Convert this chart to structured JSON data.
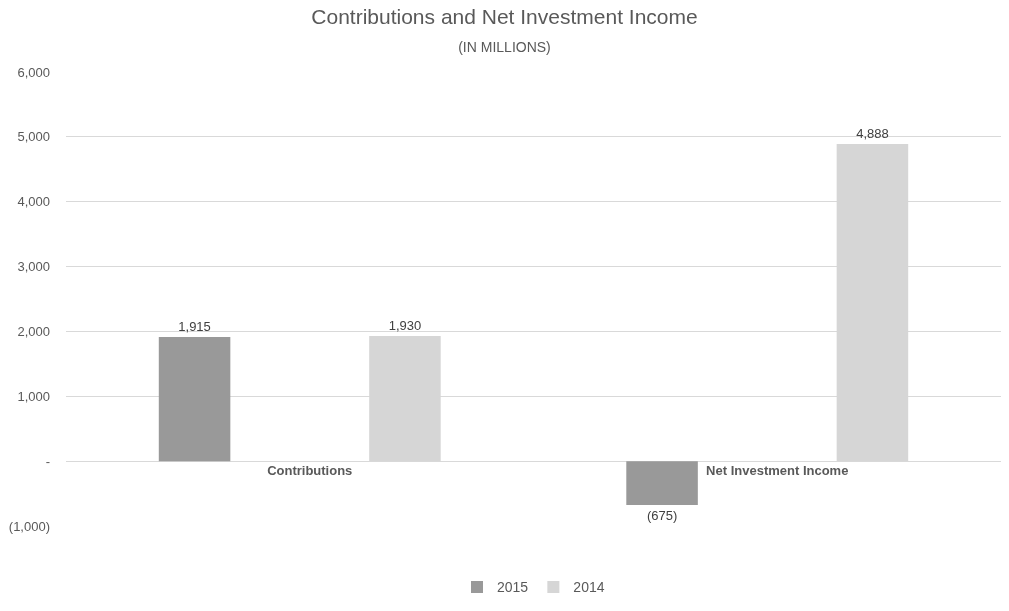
{
  "chart_data": {
    "type": "bar",
    "title": "Contributions and Net Investment Income",
    "subtitle": "(IN MILLIONS)",
    "categories": [
      "Contributions",
      "Net Investment Income"
    ],
    "series": [
      {
        "name": "2015",
        "color": "#999999",
        "values": [
          1915,
          -675
        ],
        "value_labels": [
          "1,915",
          "(675)"
        ]
      },
      {
        "name": "2014",
        "color": "#d6d6d6",
        "values": [
          1930,
          4888
        ],
        "value_labels": [
          "1,930",
          "4,888"
        ]
      }
    ],
    "ylim": [
      -1000,
      6000
    ],
    "yticks": [
      {
        "value": -1000,
        "label": "(1,000)"
      },
      {
        "value": 0,
        "label": "-"
      },
      {
        "value": 1000,
        "label": "1,000"
      },
      {
        "value": 2000,
        "label": "2,000"
      },
      {
        "value": 3000,
        "label": "3,000"
      },
      {
        "value": 4000,
        "label": "4,000"
      },
      {
        "value": 5000,
        "label": "5,000"
      },
      {
        "value": 6000,
        "label": "6,000"
      }
    ],
    "grid": "y",
    "legend": "bottom"
  }
}
